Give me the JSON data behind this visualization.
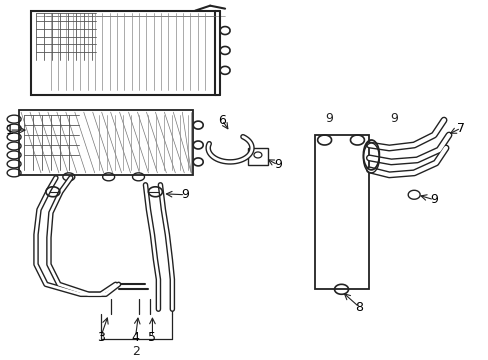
{
  "background_color": "#ffffff",
  "line_color": "#222222",
  "label_color": "#000000",
  "fig_width": 4.89,
  "fig_height": 3.6,
  "dpi": 100
}
